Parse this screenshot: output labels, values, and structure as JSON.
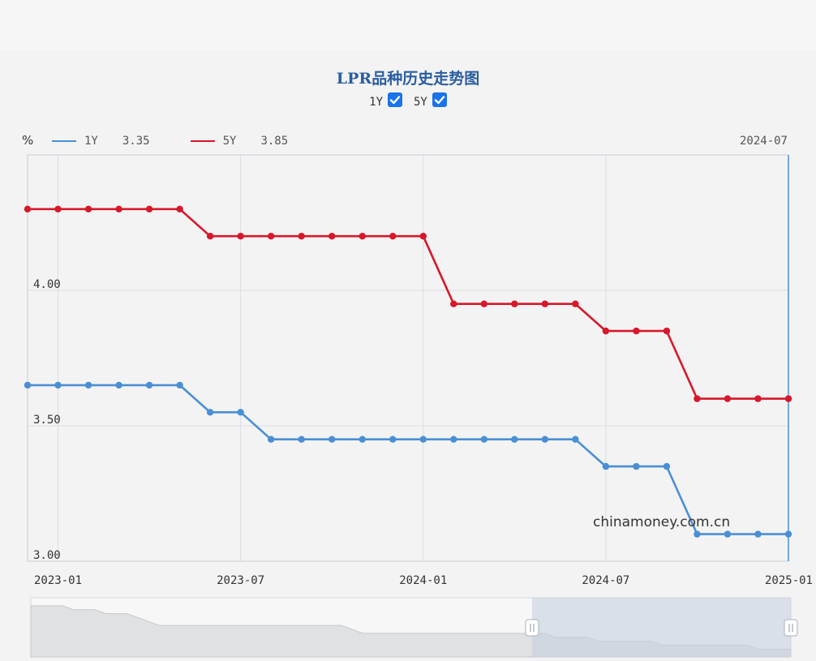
{
  "colors": {
    "y1": "#4a8fd4",
    "y5": "#d7182a",
    "title": "#2a5d9f",
    "grid": "#d9dde3",
    "cursor": "#4a8fd4",
    "checkbox": "#1a73e8"
  },
  "header": {
    "title": "LPR品种历史走势图",
    "toggles": [
      {
        "label": "1Y",
        "checked": true
      },
      {
        "label": "5Y",
        "checked": true
      }
    ]
  },
  "legend": {
    "unit": "%",
    "entries": [
      {
        "name": "1Y",
        "value": "3.35"
      },
      {
        "name": "5Y",
        "value": "3.85"
      }
    ],
    "cursor_date": "2024-07"
  },
  "watermark": "chinamoney.com.cn",
  "chart_data": {
    "type": "line",
    "title": "LPR品种历史走势图",
    "ylabel": "%",
    "ylim": [
      3.0,
      4.5
    ],
    "yticks": [
      "3.00",
      "3.50",
      "4.00"
    ],
    "ytick_values": [
      3.0,
      3.5,
      4.0
    ],
    "xticks": [
      "2023-01",
      "2023-07",
      "2024-01",
      "2024-07",
      "2025-01"
    ],
    "xtick_index": [
      1,
      7,
      13,
      19,
      25
    ],
    "x": [
      "2022-12",
      "2023-01",
      "2023-02",
      "2023-03",
      "2023-04",
      "2023-05",
      "2023-06",
      "2023-07",
      "2023-08",
      "2023-09",
      "2023-10",
      "2023-11",
      "2023-12",
      "2024-01",
      "2024-02",
      "2024-03",
      "2024-04",
      "2024-05",
      "2024-06",
      "2024-07",
      "2024-08",
      "2024-09",
      "2024-10",
      "2024-11",
      "2024-12",
      "2025-01"
    ],
    "series": [
      {
        "name": "1Y",
        "values": [
          3.65,
          3.65,
          3.65,
          3.65,
          3.65,
          3.65,
          3.55,
          3.55,
          3.45,
          3.45,
          3.45,
          3.45,
          3.45,
          3.45,
          3.45,
          3.45,
          3.45,
          3.45,
          3.45,
          3.35,
          3.35,
          3.35,
          3.1,
          3.1,
          3.1,
          3.1
        ]
      },
      {
        "name": "5Y",
        "values": [
          4.3,
          4.3,
          4.3,
          4.3,
          4.3,
          4.3,
          4.2,
          4.2,
          4.2,
          4.2,
          4.2,
          4.2,
          4.2,
          4.2,
          3.95,
          3.95,
          3.95,
          3.95,
          3.95,
          3.85,
          3.85,
          3.85,
          3.6,
          3.6,
          3.6,
          3.6
        ]
      }
    ],
    "grid": true
  }
}
